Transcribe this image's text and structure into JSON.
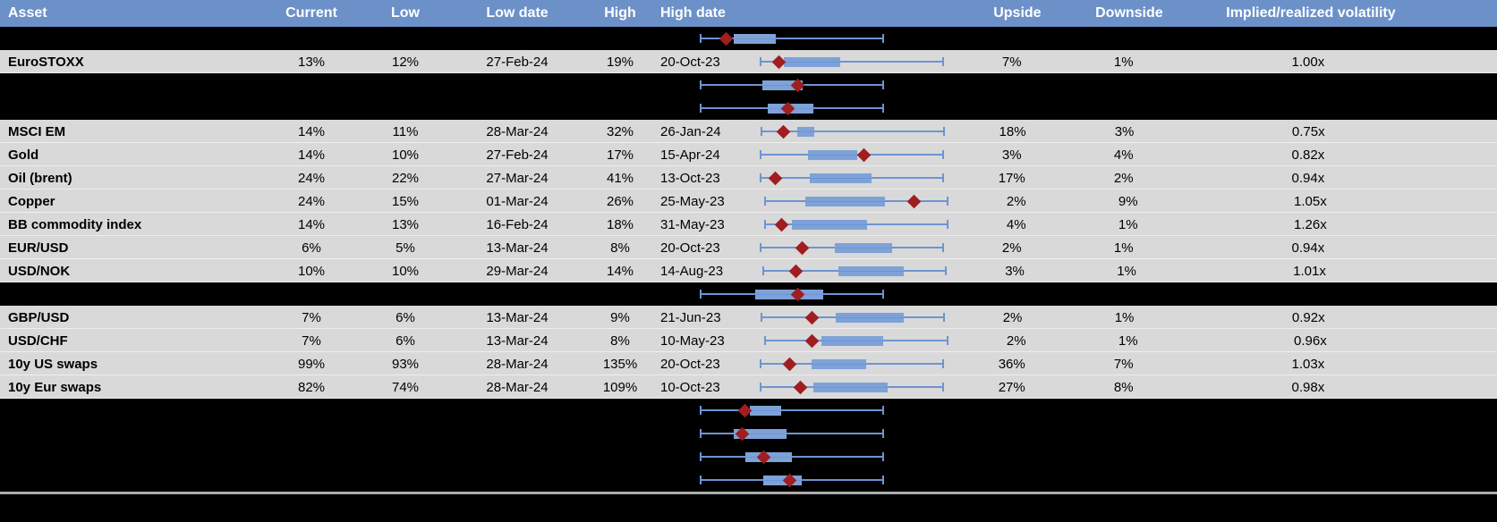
{
  "colors": {
    "header_bg": "#6C91C9",
    "header_text": "#FFFFFF",
    "light_row_bg": "#D9D9D9",
    "hidden_row_bg": "#000000",
    "box_fill": "#7EA2D8",
    "whisker": "#6D94D2",
    "marker_diamond": "#A01D20",
    "separator_line": "#ACACAC"
  },
  "table": {
    "columns": [
      {
        "key": "asset",
        "label": "Asset"
      },
      {
        "key": "current",
        "label": "Current"
      },
      {
        "key": "low",
        "label": "Low"
      },
      {
        "key": "low_date",
        "label": "Low date"
      },
      {
        "key": "high",
        "label": "High"
      },
      {
        "key": "high_date",
        "label": "High date"
      },
      {
        "key": "chart",
        "label": ""
      },
      {
        "key": "upside",
        "label": "Upside"
      },
      {
        "key": "downside",
        "label": "Downside"
      },
      {
        "key": "implied",
        "label": "Implied/realized volatility"
      }
    ],
    "rows": [
      {
        "style": "black",
        "box": {
          "b0": 0.18,
          "b1": 0.41,
          "d": 0.14
        }
      },
      {
        "style": "light",
        "asset": "EuroSTOXX",
        "current": "13%",
        "low": "12%",
        "low_date": "27-Feb-24",
        "high": "19%",
        "high_date": "20-Oct-23",
        "upside": "7%",
        "downside": "1%",
        "implied": "1.00x",
        "box": {
          "b0": 0.13,
          "b1": 0.44,
          "d": 0.1
        }
      },
      {
        "style": "black",
        "box": {
          "b0": 0.34,
          "b1": 0.56,
          "d": 0.53
        }
      },
      {
        "style": "black",
        "box": {
          "b0": 0.37,
          "b1": 0.62,
          "d": 0.48
        }
      },
      {
        "style": "light",
        "asset": "MSCI EM",
        "current": "14%",
        "low": "11%",
        "low_date": "28-Mar-24",
        "high": "32%",
        "high_date": "26-Jan-24",
        "upside": "18%",
        "downside": "3%",
        "implied": "0.75x",
        "box": {
          "b0": 0.2,
          "b1": 0.29,
          "d": 0.12
        }
      },
      {
        "style": "light",
        "asset": "Gold",
        "current": "14%",
        "low": "10%",
        "low_date": "27-Feb-24",
        "high": "17%",
        "high_date": "15-Apr-24",
        "upside": "3%",
        "downside": "4%",
        "implied": "0.82x",
        "box": {
          "b0": 0.26,
          "b1": 0.53,
          "d": 0.57
        }
      },
      {
        "style": "light",
        "asset": "Oil (brent)",
        "current": "24%",
        "low": "22%",
        "low_date": "27-Mar-24",
        "high": "41%",
        "high_date": "13-Oct-23",
        "upside": "17%",
        "downside": "2%",
        "implied": "0.94x",
        "box": {
          "b0": 0.27,
          "b1": 0.61,
          "d": 0.08
        }
      },
      {
        "style": "light",
        "asset": "Copper",
        "current": "24%",
        "low": "15%",
        "low_date": "01-Mar-24",
        "high": "26%",
        "high_date": "25-May-23",
        "upside": "2%",
        "downside": "9%",
        "implied": "1.05x",
        "box": {
          "b0": 0.22,
          "b1": 0.66,
          "d": 0.82
        }
      },
      {
        "style": "light",
        "asset": "BB commodity index",
        "current": "14%",
        "low": "13%",
        "low_date": "16-Feb-24",
        "high": "18%",
        "high_date": "31-May-23",
        "upside": "4%",
        "downside": "1%",
        "implied": "1.26x",
        "box": {
          "b0": 0.15,
          "b1": 0.56,
          "d": 0.09
        }
      },
      {
        "style": "light",
        "asset": "EUR/USD",
        "current": "6%",
        "low": "5%",
        "low_date": "13-Mar-24",
        "high": "8%",
        "high_date": "20-Oct-23",
        "upside": "2%",
        "downside": "1%",
        "implied": "0.94x",
        "box": {
          "b0": 0.41,
          "b1": 0.72,
          "d": 0.23
        }
      },
      {
        "style": "light",
        "asset": "USD/NOK",
        "current": "10%",
        "low": "10%",
        "low_date": "29-Mar-24",
        "high": "14%",
        "high_date": "14-Aug-23",
        "upside": "3%",
        "downside": "1%",
        "implied": "1.01x",
        "box": {
          "b0": 0.41,
          "b1": 0.77,
          "d": 0.18
        }
      },
      {
        "style": "black",
        "box": {
          "b0": 0.3,
          "b1": 0.67,
          "d": 0.53
        }
      },
      {
        "style": "light",
        "asset": "GBP/USD",
        "current": "7%",
        "low": "6%",
        "low_date": "13-Mar-24",
        "high": "9%",
        "high_date": "21-Jun-23",
        "upside": "2%",
        "downside": "1%",
        "implied": "0.92x",
        "box": {
          "b0": 0.41,
          "b1": 0.78,
          "d": 0.28
        }
      },
      {
        "style": "light",
        "asset": "USD/CHF",
        "current": "7%",
        "low": "6%",
        "low_date": "13-Mar-24",
        "high": "8%",
        "high_date": "10-May-23",
        "upside": "2%",
        "downside": "1%",
        "implied": "0.96x",
        "box": {
          "b0": 0.31,
          "b1": 0.65,
          "d": 0.26
        }
      },
      {
        "style": "light",
        "asset": "10y US swaps",
        "current": "99%",
        "low": "93%",
        "low_date": "28-Mar-24",
        "high": "135%",
        "high_date": "20-Oct-23",
        "upside": "36%",
        "downside": "7%",
        "implied": "1.03x",
        "box": {
          "b0": 0.28,
          "b1": 0.58,
          "d": 0.16
        }
      },
      {
        "style": "light",
        "asset": "10y Eur swaps",
        "current": "82%",
        "low": "74%",
        "low_date": "28-Mar-24",
        "high": "109%",
        "high_date": "10-Oct-23",
        "upside": "27%",
        "downside": "8%",
        "implied": "0.98x",
        "box": {
          "b0": 0.29,
          "b1": 0.7,
          "d": 0.22
        }
      },
      {
        "style": "black",
        "box": {
          "b0": 0.27,
          "b1": 0.44,
          "d": 0.245
        }
      },
      {
        "style": "black",
        "box": {
          "b0": 0.18,
          "b1": 0.47,
          "d": 0.23
        }
      },
      {
        "style": "black",
        "box": {
          "b0": 0.245,
          "b1": 0.5,
          "d": 0.345
        }
      },
      {
        "style": "black",
        "box": {
          "b0": 0.345,
          "b1": 0.555,
          "d": 0.49
        }
      }
    ]
  },
  "chart_data": {
    "type": "boxplot",
    "orientation": "horizontal",
    "note": "One horizontal box-whisker per table row. Whiskers span the full normalized range [0,1]; box = shaded range; diamond = current level marker. Positions are fractions of the plot width.",
    "rows": [
      {
        "label": "",
        "whisker": [
          0,
          1
        ],
        "box": [
          0.18,
          0.41
        ],
        "marker": 0.14
      },
      {
        "label": "EuroSTOXX",
        "whisker": [
          0,
          1
        ],
        "box": [
          0.13,
          0.44
        ],
        "marker": 0.1
      },
      {
        "label": "",
        "whisker": [
          0,
          1
        ],
        "box": [
          0.34,
          0.56
        ],
        "marker": 0.53
      },
      {
        "label": "",
        "whisker": [
          0,
          1
        ],
        "box": [
          0.37,
          0.62
        ],
        "marker": 0.48
      },
      {
        "label": "MSCI EM",
        "whisker": [
          0,
          1
        ],
        "box": [
          0.2,
          0.29
        ],
        "marker": 0.12
      },
      {
        "label": "Gold",
        "whisker": [
          0,
          1
        ],
        "box": [
          0.26,
          0.53
        ],
        "marker": 0.57
      },
      {
        "label": "Oil (brent)",
        "whisker": [
          0,
          1
        ],
        "box": [
          0.27,
          0.61
        ],
        "marker": 0.08
      },
      {
        "label": "Copper",
        "whisker": [
          0,
          1
        ],
        "box": [
          0.22,
          0.66
        ],
        "marker": 0.82
      },
      {
        "label": "BB commodity index",
        "whisker": [
          0,
          1
        ],
        "box": [
          0.15,
          0.56
        ],
        "marker": 0.09
      },
      {
        "label": "EUR/USD",
        "whisker": [
          0,
          1
        ],
        "box": [
          0.41,
          0.72
        ],
        "marker": 0.23
      },
      {
        "label": "USD/NOK",
        "whisker": [
          0,
          1
        ],
        "box": [
          0.41,
          0.77
        ],
        "marker": 0.18
      },
      {
        "label": "",
        "whisker": [
          0,
          1
        ],
        "box": [
          0.3,
          0.67
        ],
        "marker": 0.53
      },
      {
        "label": "GBP/USD",
        "whisker": [
          0,
          1
        ],
        "box": [
          0.41,
          0.78
        ],
        "marker": 0.28
      },
      {
        "label": "USD/CHF",
        "whisker": [
          0,
          1
        ],
        "box": [
          0.31,
          0.65
        ],
        "marker": 0.26
      },
      {
        "label": "10y US swaps",
        "whisker": [
          0,
          1
        ],
        "box": [
          0.28,
          0.58
        ],
        "marker": 0.16
      },
      {
        "label": "10y Eur swaps",
        "whisker": [
          0,
          1
        ],
        "box": [
          0.29,
          0.7
        ],
        "marker": 0.22
      },
      {
        "label": "",
        "whisker": [
          0,
          1
        ],
        "box": [
          0.27,
          0.44
        ],
        "marker": 0.245
      },
      {
        "label": "",
        "whisker": [
          0,
          1
        ],
        "box": [
          0.18,
          0.47
        ],
        "marker": 0.23
      },
      {
        "label": "",
        "whisker": [
          0,
          1
        ],
        "box": [
          0.245,
          0.5
        ],
        "marker": 0.345
      },
      {
        "label": "",
        "whisker": [
          0,
          1
        ],
        "box": [
          0.345,
          0.555
        ],
        "marker": 0.49
      }
    ]
  }
}
